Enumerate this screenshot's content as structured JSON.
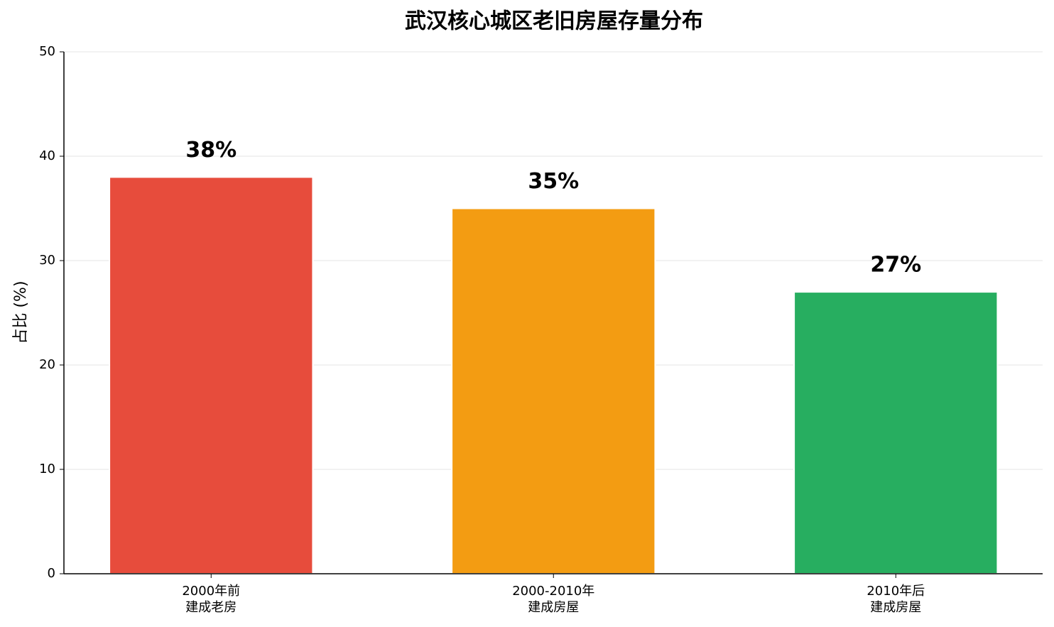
{
  "chart_data": {
    "type": "bar",
    "title": "武汉核心城区老旧房屋存量分布",
    "y_label": "占比 (%)",
    "categories": [
      "2000年前\n建成老房",
      "2000-2010年\n建成房屋",
      "2010年后\n建成房屋"
    ],
    "values": [
      38,
      35,
      27
    ],
    "value_labels": [
      "38%",
      "35%",
      "27%"
    ],
    "colors": [
      "#e74c3c",
      "#f39c12",
      "#27ae60"
    ],
    "ylim": [
      0,
      50
    ],
    "yticks": [
      0,
      10,
      20,
      30,
      40,
      50
    ],
    "grid": true
  }
}
